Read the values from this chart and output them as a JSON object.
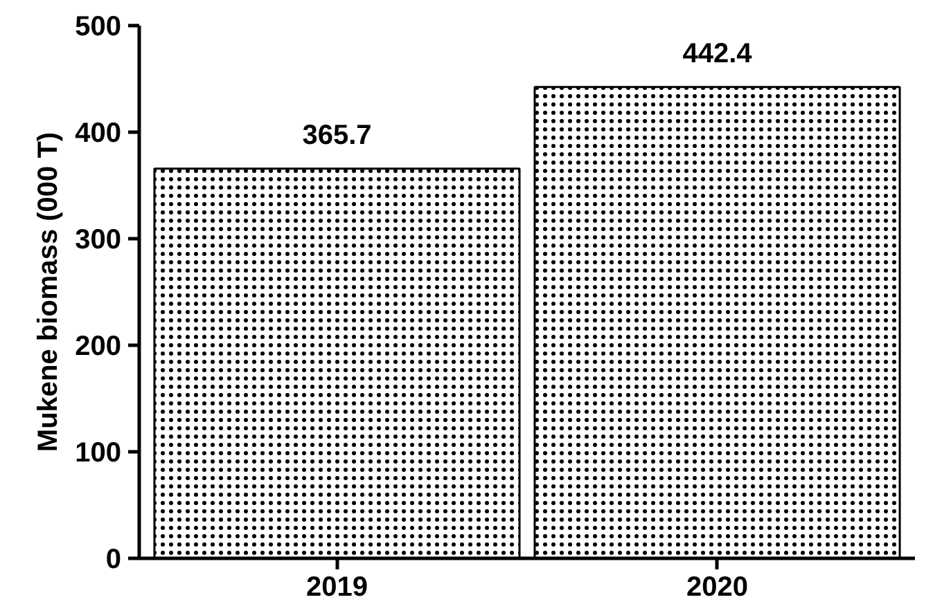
{
  "chart_data": {
    "type": "bar",
    "ylabel": "Mukene biomass (000 T)",
    "categories": [
      "2019",
      "2020"
    ],
    "values": [
      365.7,
      442.4
    ],
    "color": "#ffffff",
    "ylim": [
      0,
      500
    ],
    "yticks": [
      0,
      100,
      200,
      300,
      400,
      500
    ],
    "data_labels": true
  }
}
